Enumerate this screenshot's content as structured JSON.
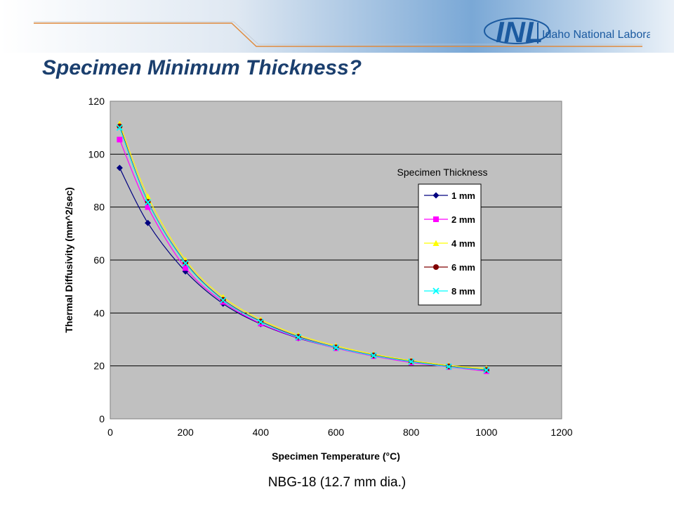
{
  "slide": {
    "title": "Specimen Minimum Thickness?",
    "caption": "NBG-18 (12.7 mm dia.)"
  },
  "logo": {
    "letters": "INL",
    "name": "Idaho National Laboratory",
    "color": "#1b5aa0"
  },
  "chart_data": {
    "type": "line",
    "title": "",
    "xlabel": "Specimen Temperature (°C)",
    "ylabel": "Thermal Diffusivity (mm^2/sec)",
    "xlim": [
      0,
      1200
    ],
    "ylim": [
      0,
      120
    ],
    "xticks": [
      0,
      200,
      400,
      600,
      800,
      1000,
      1200
    ],
    "yticks": [
      0,
      20,
      40,
      60,
      80,
      100,
      120
    ],
    "grid": "horizontal",
    "plot_background": "#c0c0c0",
    "legend_title": "Specimen Thickness",
    "legend_position": "right",
    "x": [
      25,
      100,
      200,
      300,
      400,
      500,
      600,
      700,
      800,
      900,
      1000
    ],
    "series": [
      {
        "name": "1 mm",
        "marker": "diamond",
        "color": "#000080",
        "values": [
          94.8,
          74.0,
          55.7,
          43.5,
          35.8,
          30.5,
          26.8,
          23.8,
          21.6,
          19.8,
          18.2
        ]
      },
      {
        "name": "2 mm",
        "marker": "square",
        "color": "#ff00ff",
        "values": [
          105.5,
          80.0,
          57.0,
          44.2,
          36.0,
          30.6,
          26.7,
          23.7,
          21.3,
          19.6,
          18.0
        ]
      },
      {
        "name": "4 mm",
        "marker": "triangle",
        "color": "#ffff00",
        "values": [
          111.5,
          84.0,
          60.0,
          46.0,
          37.5,
          31.6,
          27.6,
          24.4,
          22.0,
          20.2,
          19.0
        ]
      },
      {
        "name": "6 mm",
        "marker": "circle",
        "color": "#800000",
        "values": [
          110.5,
          82.0,
          59.0,
          45.0,
          36.8,
          31.0,
          27.0,
          24.0,
          21.7,
          19.8,
          18.5
        ]
      },
      {
        "name": "8 mm",
        "marker": "x",
        "color": "#00ffff",
        "values": [
          110.0,
          81.8,
          58.8,
          44.8,
          36.6,
          30.8,
          26.9,
          23.9,
          21.6,
          19.7,
          18.4
        ]
      }
    ]
  }
}
